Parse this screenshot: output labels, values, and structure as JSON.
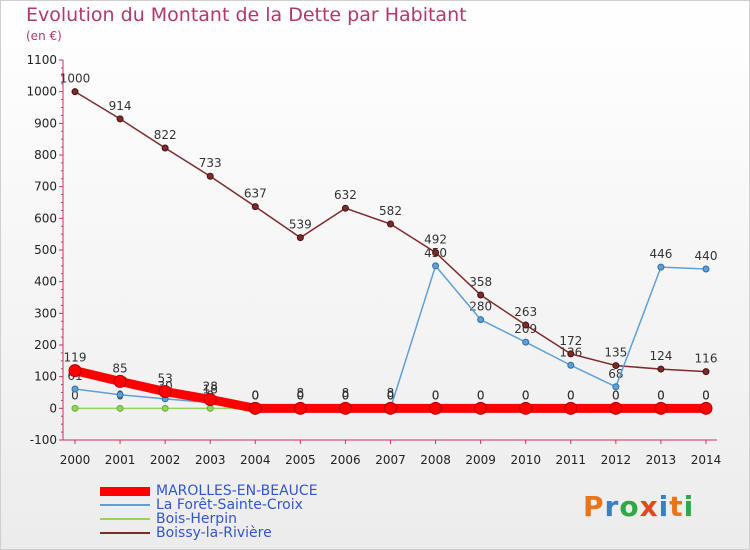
{
  "chart_data": {
    "type": "line",
    "title": "Evolution du Montant de la Dette par Habitant",
    "subtitle": "(en €)",
    "x": [
      2000,
      2001,
      2002,
      2003,
      2004,
      2005,
      2006,
      2007,
      2008,
      2009,
      2010,
      2011,
      2012,
      2013,
      2014
    ],
    "ylim": [
      -100,
      1100
    ],
    "yticks": [
      -100,
      0,
      100,
      200,
      300,
      400,
      500,
      600,
      700,
      800,
      900,
      1000,
      1100
    ],
    "grid": false,
    "legend_position": "bottom-left",
    "series": [
      {
        "name": "MAROLLES-EN-BEAUCE",
        "color": "#ff0000",
        "values": [
          119,
          85,
          53,
          28,
          0,
          0,
          0,
          0,
          0,
          0,
          0,
          0,
          0,
          0,
          0
        ],
        "labels": [
          "119",
          "85",
          "53",
          "28",
          "0",
          "0",
          "0",
          "0",
          "0",
          "0",
          "0",
          "0",
          "0",
          "0",
          "0"
        ]
      },
      {
        "name": "La Forêt-Sainte-Croix",
        "color": "#5f9fd6",
        "values": [
          61,
          43,
          30,
          18,
          0,
          0,
          0,
          0,
          450,
          280,
          209,
          136,
          68,
          446,
          440
        ],
        "labels": [
          "61",
          "43",
          "30",
          "18",
          "0",
          "0",
          "0",
          "0",
          "450",
          "280",
          "209",
          "136",
          "68",
          "446",
          "440"
        ]
      },
      {
        "name": "Bois-Herpin",
        "color": "#8fd65a",
        "values": [
          0,
          0,
          0,
          0,
          0,
          8,
          8,
          8,
          0,
          0,
          0,
          0,
          0,
          0,
          0
        ],
        "labels": [
          "0",
          "0",
          "0",
          "0",
          "0",
          "8",
          "8",
          "8",
          "0",
          "0",
          "0",
          "0",
          "0",
          "0",
          "0"
        ]
      },
      {
        "name": "Boissy-la-Rivière",
        "color": "#7b2b2b",
        "values": [
          1000,
          914,
          822,
          733,
          637,
          539,
          632,
          582,
          492,
          358,
          263,
          172,
          135,
          124,
          116
        ],
        "labels": [
          "1000",
          "914",
          "822",
          "733",
          "637",
          "539",
          "632",
          "582",
          "492",
          "358",
          "263",
          "172",
          "135",
          "124",
          "116"
        ]
      }
    ]
  },
  "logo": "Proxiti",
  "logo_colors": [
    "#e8751a",
    "#3a7fc4",
    "#2fa845",
    "#e04a1e",
    "#3a7fc4",
    "#e8751a",
    "#2fa845"
  ]
}
